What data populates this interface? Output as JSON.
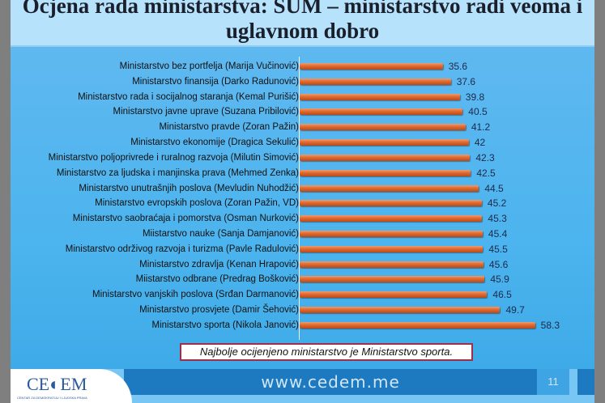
{
  "title": "Ocjena rada ministarstva: SUM – ministarstvo radi veoma i uglavnom dobro",
  "note": "Najbolje ocijenjeno ministarstvo je Ministarstvo sporta.",
  "footer": {
    "url": "www.cedem.me",
    "page": "11",
    "logo": "CEDEM",
    "logo_sub": "CENTAR ZA DEMOKRATIJU I LJUDSKA PRAVA"
  },
  "chart_data": {
    "type": "bar",
    "orientation": "horizontal",
    "xlim": [
      0,
      60
    ],
    "grid": false,
    "bar_color": "#e06a30",
    "categories": [
      "Ministarstvo bez portfelja (Marija Vučinović)",
      "Ministarstvo finansija (Darko Radunović)",
      "Ministarstvo rada i socijalnog staranja (Kemal Purišić)",
      "Ministarstvo javne uprave (Suzana Pribilović)",
      "Ministarstvo pravde (Zoran Pažin)",
      "Ministarstvo ekonomije (Dragica Sekulić)",
      "Ministarstvo poljoprivrede i ruralnog razvoja (Milutin Simović)",
      "Ministarstvo za ljudska i manjinska prava (Mehmed Zenka)",
      "Ministarstvo unutrašnjih poslova (Mevludin Nuhodžić)",
      "Ministarstvo evropskih poslova (Zoran Pažin, VD)",
      "Ministarstvo saobraćaja i pomorstva (Osman Nurković)",
      "Miistarstvo nauke (Sanja Damjanović)",
      "Ministarstvo održivog razvoja i turizma (Pavle Radulović)",
      "Ministarstvo zdravlja (Kenan Hrapović)",
      "Miistarstvo odbrane (Predrag Bošković)",
      "Ministarstvo vanjskih poslova (Srđan Darmanović)",
      "Ministarstvo prosvjete (Damir Šehović)",
      "Ministarstvo sporta (Nikola Janović)"
    ],
    "values": [
      35.6,
      37.6,
      39.8,
      40.5,
      41.2,
      42,
      42.3,
      42.5,
      44.5,
      45.2,
      45.3,
      45.4,
      45.5,
      45.6,
      45.9,
      46.5,
      49.7,
      58.3
    ],
    "labels": [
      "35.6",
      "37.6",
      "39.8",
      "40.5",
      "41.2",
      "42",
      "42.3",
      "42.5",
      "44.5",
      "45.2",
      "45.3",
      "45.4",
      "45.5",
      "45.6",
      "45.9",
      "46.5",
      "49.7",
      "58.3"
    ]
  }
}
